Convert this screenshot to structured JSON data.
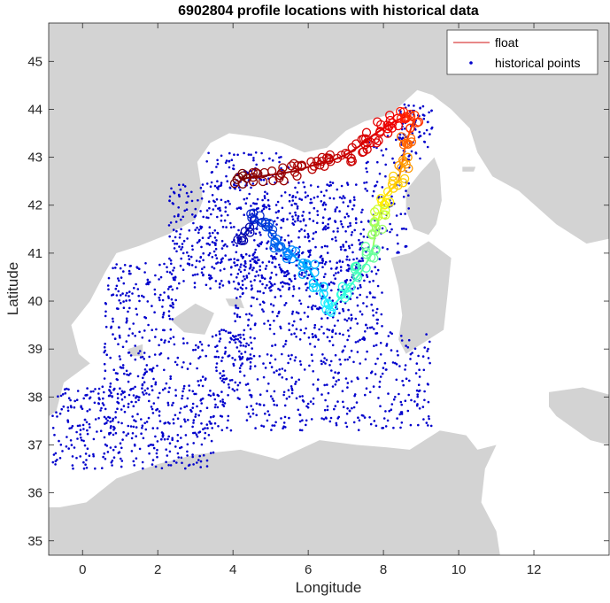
{
  "chart_data": {
    "type": "scatter",
    "title": "6902804 profile locations with historical data",
    "xlabel": "Longitude",
    "ylabel": "Latitude",
    "xlim": [
      -0.9,
      14.0
    ],
    "ylim": [
      34.7,
      45.8
    ],
    "xticks": [
      0,
      2,
      4,
      6,
      8,
      10,
      12
    ],
    "yticks": [
      35,
      36,
      37,
      38,
      39,
      40,
      41,
      42,
      43,
      44,
      45
    ],
    "grid": false,
    "legend": {
      "position": "top-right",
      "entries": [
        {
          "label": "float",
          "marker": "line",
          "color": "#e06060"
        },
        {
          "label": "historical points",
          "marker": "dot",
          "color": "#0000cc"
        }
      ]
    },
    "colors": {
      "land": "#d3d3d3",
      "sea": "#ffffff",
      "historical": "#0000cc"
    },
    "land_regions": [
      {
        "name": "France / Italy north coast",
        "points": [
          [
            -0.9,
            45.8
          ],
          [
            14.0,
            45.8
          ],
          [
            14.0,
            41.3
          ],
          [
            13.4,
            41.2
          ],
          [
            12.6,
            41.6
          ],
          [
            11.6,
            42.3
          ],
          [
            10.9,
            42.6
          ],
          [
            10.5,
            43.1
          ],
          [
            10.3,
            43.6
          ],
          [
            9.8,
            44.0
          ],
          [
            9.3,
            44.3
          ],
          [
            8.9,
            44.4
          ],
          [
            8.2,
            43.9
          ],
          [
            7.5,
            43.75
          ],
          [
            7.0,
            43.55
          ],
          [
            6.5,
            43.2
          ],
          [
            5.9,
            43.1
          ],
          [
            5.3,
            43.3
          ],
          [
            4.8,
            43.4
          ],
          [
            4.4,
            43.45
          ],
          [
            3.9,
            43.5
          ],
          [
            3.4,
            43.3
          ],
          [
            3.05,
            42.9
          ],
          [
            3.15,
            42.4
          ],
          [
            3.2,
            42.1
          ],
          [
            3.0,
            41.7
          ],
          [
            2.3,
            41.4
          ],
          [
            1.5,
            41.15
          ],
          [
            0.9,
            41.0
          ],
          [
            0.6,
            40.6
          ],
          [
            0.2,
            40.0
          ],
          [
            -0.3,
            39.5
          ],
          [
            -0.1,
            38.9
          ],
          [
            0.2,
            38.7
          ],
          [
            -0.5,
            38.3
          ],
          [
            -0.7,
            37.7
          ],
          [
            -0.9,
            37.6
          ]
        ]
      },
      {
        "name": "North Africa",
        "points": [
          [
            -0.9,
            35.7
          ],
          [
            -0.6,
            35.7
          ],
          [
            0.1,
            35.8
          ],
          [
            0.9,
            36.3
          ],
          [
            2.0,
            36.6
          ],
          [
            3.0,
            36.8
          ],
          [
            4.2,
            36.9
          ],
          [
            5.2,
            36.7
          ],
          [
            6.3,
            37.1
          ],
          [
            7.3,
            37.0
          ],
          [
            8.1,
            36.95
          ],
          [
            8.7,
            36.9
          ],
          [
            9.5,
            37.3
          ],
          [
            10.2,
            37.2
          ],
          [
            10.5,
            36.9
          ],
          [
            11.0,
            37.0
          ],
          [
            10.7,
            36.5
          ],
          [
            10.6,
            35.8
          ],
          [
            11.0,
            35.2
          ],
          [
            11.1,
            34.7
          ],
          [
            -0.9,
            34.7
          ]
        ]
      },
      {
        "name": "Sicily",
        "points": [
          [
            12.4,
            38.1
          ],
          [
            13.3,
            38.2
          ],
          [
            14.0,
            38.05
          ],
          [
            14.0,
            37.0
          ],
          [
            13.5,
            37.1
          ],
          [
            12.6,
            37.6
          ],
          [
            12.4,
            37.8
          ]
        ]
      },
      {
        "name": "Corsica",
        "points": [
          [
            9.35,
            43.0
          ],
          [
            9.5,
            42.7
          ],
          [
            9.55,
            42.1
          ],
          [
            9.4,
            41.6
          ],
          [
            9.2,
            41.38
          ],
          [
            8.8,
            41.5
          ],
          [
            8.6,
            41.9
          ],
          [
            8.6,
            42.3
          ],
          [
            9.0,
            42.7
          ],
          [
            9.3,
            42.95
          ]
        ]
      },
      {
        "name": "Sardinia",
        "points": [
          [
            9.2,
            41.25
          ],
          [
            9.8,
            40.9
          ],
          [
            9.7,
            40.1
          ],
          [
            9.6,
            39.4
          ],
          [
            9.1,
            39.15
          ],
          [
            8.6,
            38.9
          ],
          [
            8.4,
            39.2
          ],
          [
            8.5,
            39.7
          ],
          [
            8.4,
            40.3
          ],
          [
            8.2,
            40.9
          ],
          [
            8.7,
            41.0
          ]
        ]
      },
      {
        "name": "Mallorca",
        "points": [
          [
            2.35,
            39.6
          ],
          [
            3.0,
            39.95
          ],
          [
            3.5,
            39.75
          ],
          [
            3.25,
            39.3
          ],
          [
            2.7,
            39.35
          ]
        ]
      },
      {
        "name": "Menorca",
        "points": [
          [
            3.8,
            40.05
          ],
          [
            4.2,
            40.05
          ],
          [
            4.3,
            39.85
          ],
          [
            3.9,
            39.9
          ]
        ]
      },
      {
        "name": "Ibiza",
        "points": [
          [
            1.2,
            39.0
          ],
          [
            1.6,
            39.1
          ],
          [
            1.6,
            38.85
          ],
          [
            1.3,
            38.85
          ]
        ]
      },
      {
        "name": "Elba",
        "points": [
          [
            10.1,
            42.8
          ],
          [
            10.45,
            42.8
          ],
          [
            10.4,
            42.7
          ],
          [
            10.1,
            42.7
          ]
        ]
      }
    ],
    "float_track": [
      {
        "lon": 4.2,
        "lat": 42.55,
        "color": "#7a0000"
      },
      {
        "lon": 4.7,
        "lat": 42.6,
        "color": "#8c0000"
      },
      {
        "lon": 5.2,
        "lat": 42.65,
        "color": "#990000"
      },
      {
        "lon": 5.7,
        "lat": 42.72,
        "color": "#a80000"
      },
      {
        "lon": 6.2,
        "lat": 42.85,
        "color": "#b80000"
      },
      {
        "lon": 6.6,
        "lat": 42.92,
        "color": "#c20000"
      },
      {
        "lon": 7.0,
        "lat": 43.05,
        "color": "#cc0000"
      },
      {
        "lon": 7.4,
        "lat": 43.25,
        "color": "#d40000"
      },
      {
        "lon": 7.7,
        "lat": 43.45,
        "color": "#dd0000"
      },
      {
        "lon": 8.0,
        "lat": 43.6,
        "color": "#e60000"
      },
      {
        "lon": 8.3,
        "lat": 43.75,
        "color": "#f00000"
      },
      {
        "lon": 8.6,
        "lat": 43.85,
        "color": "#ff1a00"
      },
      {
        "lon": 8.8,
        "lat": 43.75,
        "color": "#ff3300"
      },
      {
        "lon": 8.6,
        "lat": 43.3,
        "color": "#ff6600"
      },
      {
        "lon": 8.5,
        "lat": 42.9,
        "color": "#ff9900"
      },
      {
        "lon": 8.4,
        "lat": 42.5,
        "color": "#ffcc00"
      },
      {
        "lon": 8.0,
        "lat": 42.15,
        "color": "#ffee00"
      },
      {
        "lon": 7.9,
        "lat": 41.8,
        "color": "#ccff33"
      },
      {
        "lon": 7.8,
        "lat": 41.5,
        "color": "#99ff66"
      },
      {
        "lon": 7.7,
        "lat": 41.0,
        "color": "#66ff99"
      },
      {
        "lon": 7.4,
        "lat": 40.6,
        "color": "#44ffbb"
      },
      {
        "lon": 7.0,
        "lat": 40.2,
        "color": "#33ffdd"
      },
      {
        "lon": 6.6,
        "lat": 39.85,
        "color": "#22eeff"
      },
      {
        "lon": 6.3,
        "lat": 40.3,
        "color": "#00ccff"
      },
      {
        "lon": 6.0,
        "lat": 40.7,
        "color": "#00aaff"
      },
      {
        "lon": 5.6,
        "lat": 40.95,
        "color": "#0088ff"
      },
      {
        "lon": 5.2,
        "lat": 41.25,
        "color": "#0066ee"
      },
      {
        "lon": 4.9,
        "lat": 41.5,
        "color": "#0044dd"
      },
      {
        "lon": 4.6,
        "lat": 41.7,
        "color": "#0022cc"
      },
      {
        "lon": 4.3,
        "lat": 41.4,
        "color": "#0000aa"
      }
    ],
    "historical_regions": [
      {
        "lon_min": -0.8,
        "lon_max": 3.5,
        "lat_min": 36.5,
        "lat_max": 38.2,
        "n": 380
      },
      {
        "lon_min": 0.5,
        "lon_max": 4.5,
        "lat_min": 38.0,
        "lat_max": 39.3,
        "n": 200
      },
      {
        "lon_min": 3.5,
        "lon_max": 9.3,
        "lat_min": 37.3,
        "lat_max": 39.4,
        "n": 440
      },
      {
        "lon_min": 0.6,
        "lon_max": 2.5,
        "lat_min": 39.3,
        "lat_max": 40.8,
        "n": 130
      },
      {
        "lon_min": 4.0,
        "lon_max": 8.0,
        "lat_min": 39.4,
        "lat_max": 40.9,
        "n": 260
      },
      {
        "lon_min": 2.3,
        "lon_max": 7.5,
        "lat_min": 40.2,
        "lat_max": 42.5,
        "n": 680
      },
      {
        "lon_min": 7.5,
        "lon_max": 8.7,
        "lat_min": 41.0,
        "lat_max": 43.5,
        "n": 100
      },
      {
        "lon_min": 8.4,
        "lon_max": 9.3,
        "lat_min": 42.9,
        "lat_max": 44.1,
        "n": 70
      },
      {
        "lon_min": 3.3,
        "lon_max": 5.5,
        "lat_min": 42.4,
        "lat_max": 43.1,
        "n": 70
      }
    ]
  }
}
